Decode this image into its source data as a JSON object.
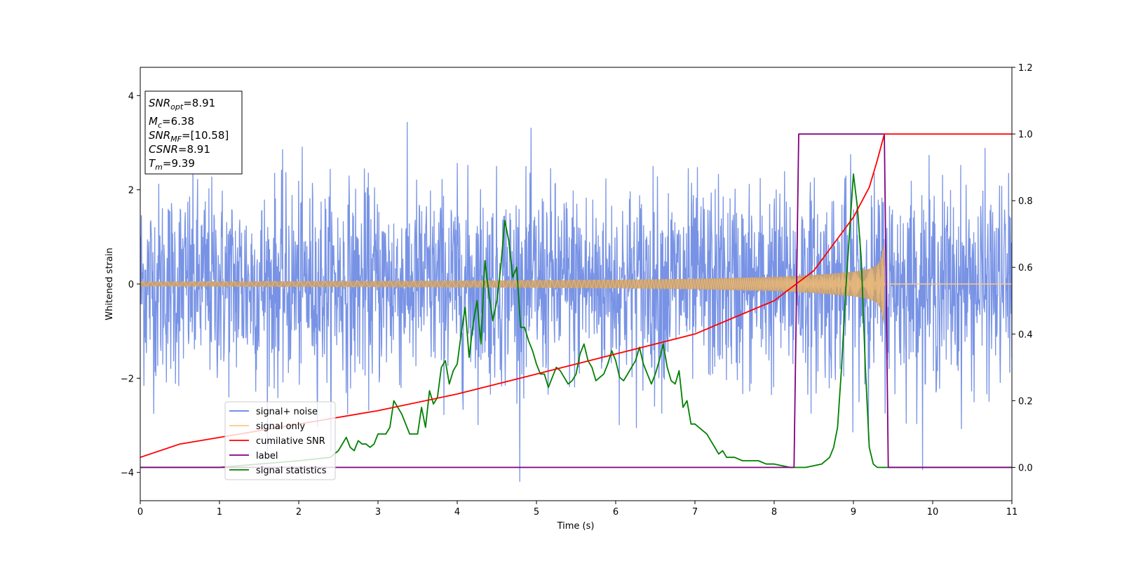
{
  "chart_data": {
    "type": "line",
    "title": "",
    "xlabel": "Time (s)",
    "ylabel": "Whitened strain",
    "xlim": [
      0,
      11
    ],
    "ylim_left": [
      -4.6,
      4.6
    ],
    "ylim_right": [
      -0.1,
      1.2
    ],
    "x_ticks": [
      "0",
      "1",
      "2",
      "3",
      "4",
      "5",
      "6",
      "7",
      "8",
      "9",
      "10",
      "11"
    ],
    "y_ticks_left": [
      "−4",
      "−2",
      "0",
      "2",
      "4"
    ],
    "y_ticks_left_values": [
      -4,
      -2,
      0,
      2,
      4
    ],
    "y_ticks_right": [
      "0.0",
      "0.2",
      "0.4",
      "0.6",
      "0.8",
      "1.0",
      "1.2"
    ],
    "y_ticks_right_values": [
      0,
      0.2,
      0.4,
      0.6,
      0.8,
      1.0,
      1.2
    ],
    "annotation": {
      "lines": [
        {
          "sym": "SNR",
          "sub": "opt",
          "value": "=8.91"
        },
        {
          "sym": "M",
          "sub": "c",
          "value": "=6.38"
        },
        {
          "sym": "SNR",
          "sub": "MF",
          "value": "=[10.58]"
        },
        {
          "sym": "CSNR",
          "sub": "",
          "value": "=8.91"
        },
        {
          "sym": "T",
          "sub": "m",
          "value": "=9.39"
        }
      ]
    },
    "legend": {
      "placement": "lower-left",
      "entries": [
        {
          "label": "signal+ noise",
          "color": "#6080e0"
        },
        {
          "label": "signal only",
          "color": "#ffc880"
        },
        {
          "label": "cumilative SNR",
          "color": "#ff0000"
        },
        {
          "label": "label",
          "color": "#800080"
        },
        {
          "label": "signal statistics",
          "color": "#008000"
        }
      ]
    },
    "series": [
      {
        "name": "signal+ noise",
        "axis": "left",
        "color": "#6080e0",
        "description_values": {
          "std": 1.0,
          "x_range": [
            0,
            11
          ]
        }
      },
      {
        "name": "signal only",
        "axis": "left",
        "color": "#ffc880",
        "envelope": {
          "t": [
            0,
            2,
            4,
            6,
            7,
            8,
            8.5,
            9,
            9.2,
            9.3,
            9.35,
            9.39
          ],
          "amp": [
            0.05,
            0.06,
            0.07,
            0.09,
            0.11,
            0.15,
            0.19,
            0.26,
            0.32,
            0.4,
            0.55,
            0.9
          ]
        },
        "end_time": 9.39
      },
      {
        "name": "cumilative SNR",
        "axis": "right",
        "color": "#ff0000",
        "x": [
          0,
          0.5,
          1,
          2,
          3,
          4,
          5,
          6,
          7,
          7.5,
          8,
          8.5,
          9,
          9.2,
          9.3,
          9.39,
          11
        ],
        "y": [
          0.03,
          0.07,
          0.09,
          0.13,
          0.17,
          0.22,
          0.28,
          0.34,
          0.4,
          0.45,
          0.5,
          0.59,
          0.75,
          0.84,
          0.92,
          1.0,
          1.0
        ]
      },
      {
        "name": "label",
        "axis": "right",
        "color": "#800080",
        "x": [
          0,
          8.25,
          8.31,
          9.39,
          9.44,
          11
        ],
        "y": [
          0,
          0,
          1,
          1,
          0,
          0
        ]
      },
      {
        "name": "signal statistics",
        "axis": "right",
        "color": "#008000",
        "x": [
          0,
          1,
          2,
          2.4,
          2.5,
          2.6,
          2.65,
          2.7,
          2.75,
          2.8,
          2.85,
          2.9,
          2.95,
          3.0,
          3.1,
          3.15,
          3.2,
          3.3,
          3.4,
          3.5,
          3.55,
          3.6,
          3.65,
          3.7,
          3.75,
          3.8,
          3.85,
          3.9,
          3.95,
          4.0,
          4.05,
          4.1,
          4.15,
          4.2,
          4.25,
          4.3,
          4.35,
          4.4,
          4.45,
          4.5,
          4.55,
          4.6,
          4.65,
          4.7,
          4.75,
          4.8,
          4.85,
          4.9,
          4.95,
          5.0,
          5.05,
          5.1,
          5.15,
          5.2,
          5.25,
          5.3,
          5.35,
          5.4,
          5.45,
          5.5,
          5.55,
          5.6,
          5.65,
          5.7,
          5.75,
          5.8,
          5.85,
          5.9,
          5.95,
          6.0,
          6.05,
          6.1,
          6.15,
          6.2,
          6.25,
          6.3,
          6.35,
          6.4,
          6.45,
          6.5,
          6.55,
          6.6,
          6.65,
          6.7,
          6.75,
          6.8,
          6.85,
          6.9,
          6.95,
          7.0,
          7.05,
          7.1,
          7.15,
          7.2,
          7.25,
          7.3,
          7.35,
          7.4,
          7.5,
          7.6,
          7.7,
          7.8,
          7.9,
          8.0,
          8.2,
          8.4,
          8.6,
          8.7,
          8.75,
          8.8,
          8.85,
          8.9,
          8.95,
          9.0,
          9.05,
          9.1,
          9.15,
          9.2,
          9.25,
          9.3,
          9.35,
          9.4,
          9.45,
          9.5,
          10,
          11
        ],
        "y": [
          0.0,
          0.0,
          0.02,
          0.03,
          0.05,
          0.09,
          0.06,
          0.05,
          0.08,
          0.07,
          0.07,
          0.06,
          0.07,
          0.1,
          0.1,
          0.12,
          0.2,
          0.16,
          0.1,
          0.1,
          0.18,
          0.12,
          0.23,
          0.19,
          0.21,
          0.3,
          0.32,
          0.25,
          0.29,
          0.31,
          0.4,
          0.48,
          0.33,
          0.43,
          0.5,
          0.37,
          0.62,
          0.52,
          0.44,
          0.5,
          0.6,
          0.74,
          0.68,
          0.57,
          0.6,
          0.42,
          0.42,
          0.38,
          0.35,
          0.31,
          0.28,
          0.28,
          0.24,
          0.27,
          0.3,
          0.29,
          0.27,
          0.25,
          0.26,
          0.28,
          0.34,
          0.37,
          0.32,
          0.3,
          0.26,
          0.27,
          0.28,
          0.31,
          0.35,
          0.32,
          0.27,
          0.26,
          0.28,
          0.3,
          0.32,
          0.36,
          0.31,
          0.28,
          0.25,
          0.28,
          0.32,
          0.37,
          0.3,
          0.26,
          0.25,
          0.29,
          0.18,
          0.2,
          0.13,
          0.13,
          0.12,
          0.11,
          0.1,
          0.08,
          0.06,
          0.04,
          0.05,
          0.03,
          0.03,
          0.02,
          0.02,
          0.02,
          0.01,
          0.01,
          0.0,
          0.0,
          0.01,
          0.03,
          0.06,
          0.12,
          0.3,
          0.52,
          0.7,
          0.88,
          0.78,
          0.62,
          0.3,
          0.06,
          0.01,
          0.0,
          0.0,
          0.0,
          0.0,
          0.0,
          0.0,
          0.0
        ]
      }
    ]
  }
}
